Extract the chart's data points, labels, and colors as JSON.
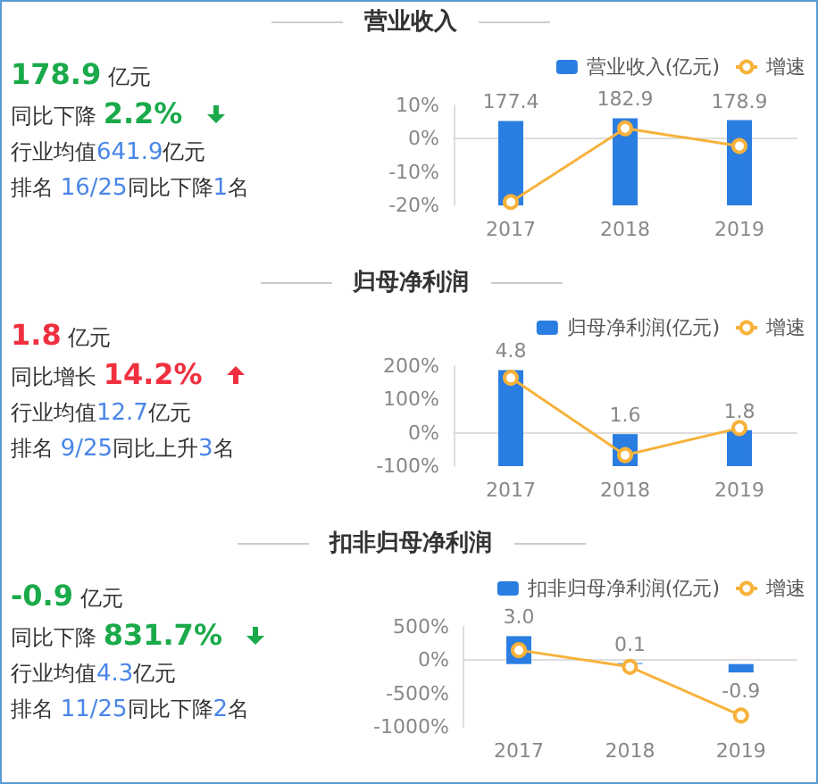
{
  "chart_data": [
    {
      "type": "other",
      "title": "营业收入",
      "color": "#1aaa4a",
      "annotations": [
        "178.9 亿元",
        "同比下降 2.2%",
        "行业均值641.9亿元",
        "排名 16/25同比下降1名"
      ]
    },
    {
      "type": "bar",
      "categories": [
        "2017",
        "2018",
        "2019"
      ],
      "legend": "top right",
      "marker": "circle",
      "ylim": [
        -20,
        10
      ],
      "yticks": [
        {
          "value": -20,
          "label": "-20%"
        },
        {
          "value": -10,
          "label": "-10%"
        },
        {
          "value": 0,
          "label": "0%"
        },
        {
          "value": 10,
          "label": "10%"
        }
      ],
      "series": [
        {
          "name": "营业收入(亿元)",
          "type": "bar",
          "axis": "y2",
          "color": "#2a7de1",
          "values": [
            177.4,
            182.9,
            178.9
          ],
          "value_labels": [
            "177.4",
            "182.9",
            "178.9"
          ]
        },
        {
          "name": "增速",
          "type": "line",
          "color": "#f7b23b",
          "values": [
            -19,
            3.1,
            -2.2
          ]
        }
      ]
    },
    {
      "type": "other",
      "title": "归母净利润",
      "color": "#f0303f",
      "annotations": [
        "1.8 亿元",
        "同比增长 14.2%",
        "行业均值12.7亿元",
        "排名 9/25同比上升3名"
      ]
    },
    {
      "type": "bar",
      "categories": [
        "2017",
        "2018",
        "2019"
      ],
      "legend": "top right",
      "marker": "circle",
      "ylim": [
        -100,
        200
      ],
      "yticks": [
        {
          "value": -100,
          "label": "-100%"
        },
        {
          "value": 0,
          "label": "0%"
        },
        {
          "value": 100,
          "label": "100%"
        },
        {
          "value": 200,
          "label": "200%"
        }
      ],
      "series": [
        {
          "name": "归母净利润(亿元)",
          "type": "bar",
          "axis": "y2",
          "color": "#2a7de1",
          "values": [
            4.8,
            1.6,
            1.8
          ],
          "value_labels": [
            "4.8",
            "1.6",
            "1.8"
          ]
        },
        {
          "name": "增速",
          "type": "line",
          "color": "#f7b23b",
          "values": [
            165,
            -67,
            14.2
          ]
        }
      ]
    },
    {
      "type": "other",
      "title": "扣非归母净利润",
      "color": "#1aaa4a",
      "annotations": [
        "-0.9 亿元",
        "同比下降 831.7%",
        "行业均值4.3亿元",
        "排名 11/25同比下降2名"
      ]
    },
    {
      "type": "bar",
      "categories": [
        "2017",
        "2018",
        "2019"
      ],
      "legend": "top right",
      "marker": "circle",
      "ylim": [
        -1000,
        500
      ],
      "yticks": [
        {
          "value": -1000,
          "label": "-1000%"
        },
        {
          "value": -500,
          "label": "-500%"
        },
        {
          "value": 0,
          "label": "0%"
        },
        {
          "value": 500,
          "label": "500%"
        }
      ],
      "series": [
        {
          "name": "扣非归母净利润(亿元)",
          "type": "bar",
          "axis": "y2",
          "color": "#2a7de1",
          "values": [
            3.0,
            0.1,
            -0.9
          ],
          "value_labels": [
            "3.0",
            "0.1",
            "-0.9"
          ]
        },
        {
          "name": "增速",
          "type": "line",
          "color": "#f7b23b",
          "values": [
            150,
            -100,
            -830
          ]
        }
      ]
    }
  ]
}
